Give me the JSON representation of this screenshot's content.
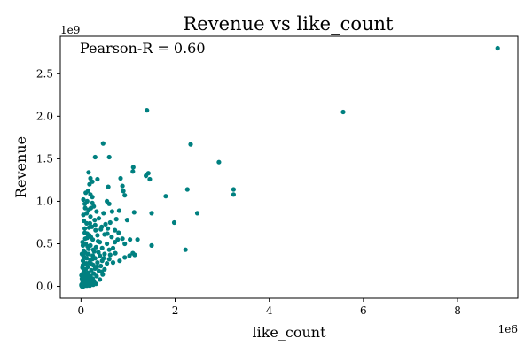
{
  "chart_data": {
    "type": "scatter",
    "title": "Revenue vs like_count",
    "xlabel": "like_count",
    "ylabel": "Revenue",
    "x_multiplier_label": "1e6",
    "y_multiplier_label": "1e9",
    "annotation": "Pearson-R = 0.60",
    "xlim": [
      -0.44,
      9.28
    ],
    "ylim": [
      -0.14,
      2.94
    ],
    "x_ticks": [
      0,
      2,
      4,
      6,
      8
    ],
    "x_tick_labels": [
      "0",
      "2",
      "4",
      "6",
      "8"
    ],
    "y_ticks": [
      0.0,
      0.5,
      1.0,
      1.5,
      2.0,
      2.5
    ],
    "y_tick_labels": [
      "0.0",
      "0.5",
      "1.0",
      "1.5",
      "2.0",
      "2.5"
    ],
    "grid": false,
    "marker_color": "#008080",
    "points": [
      [
        8.85,
        2.8
      ],
      [
        5.57,
        2.05
      ],
      [
        1.4,
        2.07
      ],
      [
        2.33,
        1.67
      ],
      [
        0.47,
        1.68
      ],
      [
        0.3,
        1.52
      ],
      [
        0.6,
        1.52
      ],
      [
        2.93,
        1.46
      ],
      [
        1.11,
        1.4
      ],
      [
        1.1,
        1.35
      ],
      [
        1.43,
        1.33
      ],
      [
        1.38,
        1.3
      ],
      [
        1.46,
        1.26
      ],
      [
        0.16,
        1.34
      ],
      [
        0.2,
        1.27
      ],
      [
        0.24,
        1.23
      ],
      [
        0.18,
        1.2
      ],
      [
        0.35,
        1.26
      ],
      [
        0.84,
        1.27
      ],
      [
        0.88,
        1.18
      ],
      [
        0.58,
        1.17
      ],
      [
        0.9,
        1.12
      ],
      [
        2.26,
        1.14
      ],
      [
        3.24,
        1.14
      ],
      [
        3.24,
        1.08
      ],
      [
        1.8,
        1.06
      ],
      [
        0.15,
        1.12
      ],
      [
        0.1,
        1.1
      ],
      [
        0.2,
        1.08
      ],
      [
        0.24,
        1.05
      ],
      [
        0.05,
        1.02
      ],
      [
        0.13,
        1.0
      ],
      [
        0.24,
        0.98
      ],
      [
        0.93,
        1.07
      ],
      [
        0.55,
        1.0
      ],
      [
        0.6,
        0.97
      ],
      [
        0.27,
        0.94
      ],
      [
        0.09,
        0.92
      ],
      [
        0.16,
        0.9
      ],
      [
        0.33,
        0.88
      ],
      [
        0.66,
        0.88
      ],
      [
        0.81,
        0.89
      ],
      [
        0.48,
        0.86
      ],
      [
        1.13,
        0.87
      ],
      [
        1.5,
        0.86
      ],
      [
        2.47,
        0.86
      ],
      [
        0.05,
        0.84
      ],
      [
        0.2,
        0.82
      ],
      [
        0.38,
        0.8
      ],
      [
        0.75,
        0.79
      ],
      [
        0.62,
        0.75
      ],
      [
        0.52,
        0.73
      ],
      [
        0.98,
        0.78
      ],
      [
        1.98,
        0.75
      ],
      [
        0.12,
        0.74
      ],
      [
        0.3,
        0.72
      ],
      [
        0.23,
        0.7
      ],
      [
        0.08,
        0.68
      ],
      [
        0.42,
        0.67
      ],
      [
        0.57,
        0.68
      ],
      [
        0.72,
        0.66
      ],
      [
        0.8,
        0.63
      ],
      [
        0.08,
        0.63
      ],
      [
        0.18,
        0.6
      ],
      [
        0.35,
        0.6
      ],
      [
        0.5,
        0.61
      ],
      [
        0.65,
        0.58
      ],
      [
        0.88,
        0.56
      ],
      [
        1.04,
        0.55
      ],
      [
        1.2,
        0.55
      ],
      [
        0.13,
        0.57
      ],
      [
        0.25,
        0.55
      ],
      [
        0.4,
        0.52
      ],
      [
        0.55,
        0.5
      ],
      [
        0.72,
        0.52
      ],
      [
        0.93,
        0.5
      ],
      [
        1.5,
        0.48
      ],
      [
        0.03,
        0.52
      ],
      [
        0.1,
        0.5
      ],
      [
        0.2,
        0.48
      ],
      [
        0.32,
        0.46
      ],
      [
        0.45,
        0.45
      ],
      [
        0.6,
        0.43
      ],
      [
        0.16,
        0.44
      ],
      [
        0.06,
        0.42
      ],
      [
        0.28,
        0.41
      ],
      [
        0.08,
        0.4
      ],
      [
        0.37,
        0.4
      ],
      [
        0.5,
        0.38
      ],
      [
        0.73,
        0.39
      ],
      [
        1.1,
        0.39
      ],
      [
        1.14,
        0.37
      ],
      [
        2.22,
        0.43
      ],
      [
        0.14,
        0.38
      ],
      [
        0.25,
        0.36
      ],
      [
        0.4,
        0.36
      ],
      [
        0.05,
        0.36
      ],
      [
        0.3,
        0.33
      ],
      [
        0.6,
        0.32
      ],
      [
        0.93,
        0.34
      ],
      [
        1.03,
        0.36
      ],
      [
        0.12,
        0.33
      ],
      [
        0.2,
        0.31
      ],
      [
        0.45,
        0.3
      ],
      [
        0.82,
        0.3
      ],
      [
        0.04,
        0.3
      ],
      [
        0.18,
        0.28
      ],
      [
        0.35,
        0.28
      ],
      [
        0.55,
        0.27
      ],
      [
        0.68,
        0.28
      ],
      [
        0.08,
        0.26
      ],
      [
        0.26,
        0.25
      ],
      [
        0.42,
        0.24
      ],
      [
        0.15,
        0.23
      ],
      [
        0.03,
        0.22
      ],
      [
        0.3,
        0.21
      ],
      [
        0.5,
        0.2
      ],
      [
        0.1,
        0.2
      ],
      [
        0.22,
        0.19
      ],
      [
        0.06,
        0.18
      ],
      [
        0.38,
        0.18
      ],
      [
        0.15,
        0.16
      ],
      [
        0.27,
        0.15
      ],
      [
        0.04,
        0.15
      ],
      [
        0.46,
        0.14
      ],
      [
        0.12,
        0.13
      ],
      [
        0.2,
        0.12
      ],
      [
        0.33,
        0.12
      ],
      [
        0.07,
        0.11
      ],
      [
        0.16,
        0.1
      ],
      [
        0.25,
        0.09
      ],
      [
        0.02,
        0.09
      ],
      [
        0.1,
        0.08
      ],
      [
        0.4,
        0.08
      ],
      [
        0.18,
        0.07
      ],
      [
        0.05,
        0.06
      ],
      [
        0.28,
        0.06
      ],
      [
        0.12,
        0.05
      ],
      [
        0.22,
        0.04
      ],
      [
        0.03,
        0.04
      ],
      [
        0.08,
        0.03
      ],
      [
        0.15,
        0.03
      ],
      [
        0.32,
        0.03
      ],
      [
        0.01,
        0.02
      ],
      [
        0.06,
        0.02
      ],
      [
        0.1,
        0.01
      ],
      [
        0.19,
        0.01
      ],
      [
        0.02,
        0.0
      ],
      [
        0.05,
        0.0
      ],
      [
        0.13,
        0.01
      ],
      [
        0.26,
        0.02
      ],
      [
        0.01,
        0.01
      ],
      [
        0.09,
        0.15
      ],
      [
        0.11,
        0.27
      ],
      [
        0.07,
        0.34
      ],
      [
        0.14,
        0.47
      ],
      [
        0.21,
        0.58
      ],
      [
        0.09,
        0.56
      ],
      [
        0.17,
        0.69
      ],
      [
        0.29,
        0.78
      ],
      [
        0.06,
        0.77
      ],
      [
        0.12,
        0.86
      ],
      [
        0.21,
        0.92
      ],
      [
        0.08,
        0.97
      ],
      [
        0.31,
        0.66
      ],
      [
        0.36,
        0.53
      ],
      [
        0.26,
        0.43
      ],
      [
        0.24,
        0.32
      ],
      [
        0.04,
        0.48
      ],
      [
        0.02,
        0.38
      ],
      [
        0.13,
        0.62
      ],
      [
        0.19,
        0.74
      ],
      [
        0.44,
        0.7
      ],
      [
        0.56,
        0.62
      ],
      [
        0.68,
        0.45
      ],
      [
        0.78,
        0.55
      ],
      [
        0.62,
        0.37
      ],
      [
        0.48,
        0.33
      ],
      [
        0.34,
        0.23
      ],
      [
        0.44,
        0.17
      ],
      [
        0.23,
        0.26
      ],
      [
        0.16,
        0.38
      ],
      [
        0.04,
        0.25
      ],
      [
        0.01,
        0.13
      ]
    ]
  }
}
